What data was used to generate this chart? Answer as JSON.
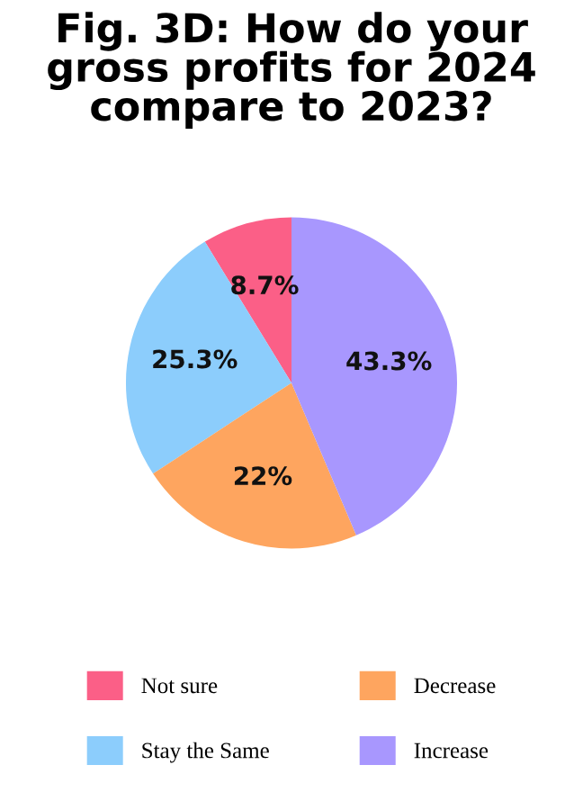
{
  "chart_data": {
    "type": "pie",
    "title": "Fig. 3D: How do your gross profits for 2024 compare to 2023?",
    "categories": [
      "Not sure",
      "Stay the Same",
      "Decrease",
      "Increase"
    ],
    "values": [
      8.7,
      25.3,
      22,
      43.3
    ],
    "value_labels": [
      "8.7%",
      "25.3%",
      "22%",
      "43.3%"
    ],
    "colors": [
      "#fb5f87",
      "#8ccdfc",
      "#fea55f",
      "#a897fe"
    ],
    "legend": "bottom"
  }
}
